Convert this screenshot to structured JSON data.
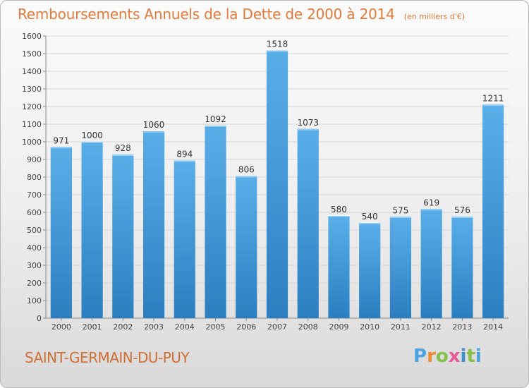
{
  "chart_data": {
    "type": "bar",
    "title": "Remboursements Annuels de la Dette de 2000 à 2014",
    "unit_label": "(en milliers d'€)",
    "categories": [
      "2000",
      "2001",
      "2002",
      "2003",
      "2004",
      "2005",
      "2006",
      "2007",
      "2008",
      "2009",
      "2010",
      "2011",
      "2012",
      "2013",
      "2014"
    ],
    "values": [
      971,
      1000,
      928,
      1060,
      894,
      1092,
      806,
      1518,
      1073,
      580,
      540,
      575,
      619,
      576,
      1211
    ],
    "ylim": [
      0,
      1600
    ],
    "yticks": [
      0,
      100,
      200,
      300,
      400,
      500,
      600,
      700,
      800,
      900,
      1000,
      1100,
      1200,
      1300,
      1400,
      1500,
      1600
    ],
    "grid": true,
    "bar_color": "#4a9fdd"
  },
  "footer": {
    "commune": "SAINT-GERMAIN-DU-PUY",
    "logo_text": "Proxiti"
  },
  "colors": {
    "title": "#e07a3d",
    "commune": "#cf6f33"
  }
}
